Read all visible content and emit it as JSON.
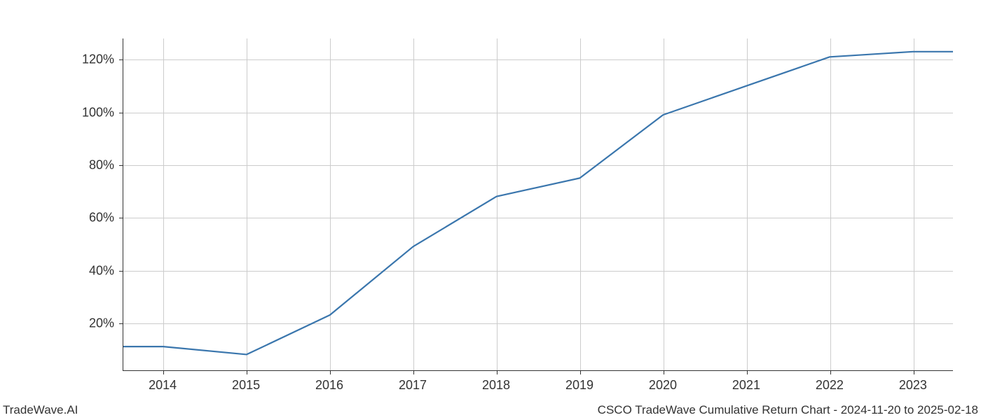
{
  "chart": {
    "type": "line",
    "line_color": "#3a76ad",
    "line_width": 2.2,
    "background_color": "#ffffff",
    "grid_color": "#cccccc",
    "axis_color": "#333333",
    "tick_label_fontsize": 18,
    "tick_label_color": "#333333",
    "x_categories": [
      "2014",
      "2015",
      "2016",
      "2017",
      "2018",
      "2019",
      "2020",
      "2021",
      "2022",
      "2023"
    ],
    "x_positions": [
      0,
      1,
      2,
      3,
      4,
      5,
      6,
      7,
      8,
      9
    ],
    "xlim_data": [
      -0.48,
      9.48
    ],
    "y_values_pct": [
      11,
      8,
      23,
      49,
      68,
      75,
      99,
      110,
      121,
      123
    ],
    "y_ticks": [
      20,
      40,
      60,
      80,
      100,
      120
    ],
    "y_tick_labels": [
      "20%",
      "40%",
      "60%",
      "80%",
      "100%",
      "120%"
    ],
    "x_leading_tail": true,
    "x_trailing_tail": true,
    "ylim_data": [
      2,
      128
    ]
  },
  "footer": {
    "left": "TradeWave.AI",
    "right": "CSCO TradeWave Cumulative Return Chart - 2024-11-20 to 2025-02-18"
  }
}
